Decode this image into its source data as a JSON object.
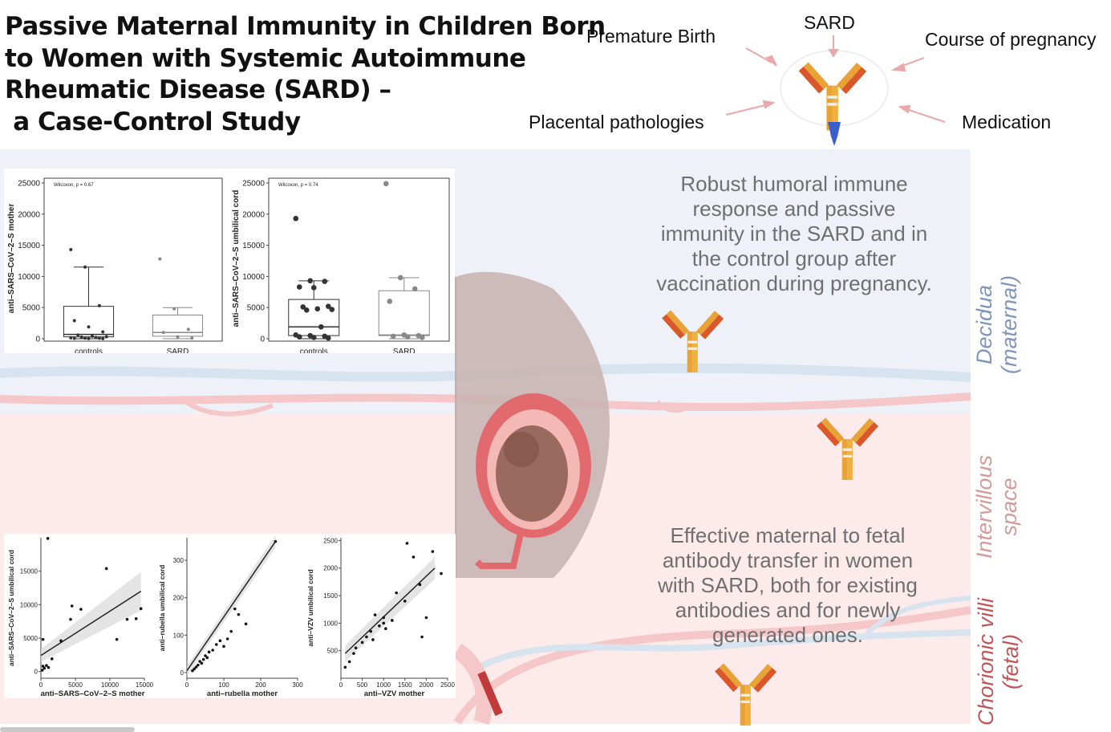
{
  "title": {
    "lines": [
      "Passive Maternal Immunity in Children Born",
      "to Women with Systemic Autoimmune",
      "Rheumatic Disease (SARD) –",
      " a Case-Control Study"
    ]
  },
  "antibody_factors": {
    "top": "SARD",
    "upper_left": "Premature Birth",
    "upper_right": "Course of pregnancy",
    "lower_left": "Placental pathologies",
    "lower_right": "Medication"
  },
  "findings": {
    "top_lines": [
      "Robust humoral immune",
      "response and passive",
      "immunity in the SARD and in",
      "the control group after",
      "vaccination during pregnancy."
    ],
    "bottom_lines": [
      "Effective maternal to fetal",
      "antibody transfer in women",
      "with SARD, both for existing",
      "antibodies and for newly",
      "generated ones."
    ]
  },
  "layers": {
    "decidua": [
      "Decidua",
      "(maternal)"
    ],
    "intervillous": [
      "Intervillous",
      "space"
    ],
    "chorionic": [
      "Chorionic villi",
      "(fetal)"
    ]
  },
  "colors": {
    "decidua_band": "#eef2f8",
    "intervillous_band": "#fdebec",
    "decidua_text": "#7f95bd",
    "intervillous_text": "#d49a9a",
    "chorionic_text": "#c0555a",
    "antibody_orange": "#e8a236",
    "antibody_red": "#d9572b",
    "antibody_blue": "#3a5fcd"
  },
  "chart_data": [
    {
      "type": "box",
      "stat_label": "Wilcoxon, p = 0.67",
      "ylabel": "anti–SARS–CoV–2–S mother",
      "categories": [
        "controls",
        "SARD"
      ],
      "ylim": [
        0,
        25000
      ],
      "yticks": [
        0,
        5000,
        10000,
        15000,
        20000,
        25000
      ],
      "boxes": [
        {
          "min": 0,
          "q1": 300,
          "median": 700,
          "q3": 5200,
          "max": 11500
        },
        {
          "min": 0,
          "q1": 400,
          "median": 1000,
          "q3": 3800,
          "max": 5000
        }
      ],
      "points": [
        [
          14300,
          11500,
          5300,
          2900,
          1900,
          1100,
          600,
          400,
          300,
          250,
          200,
          150,
          100,
          80,
          60,
          40,
          20
        ],
        [
          12800,
          4800,
          1500,
          1000,
          300,
          100
        ]
      ]
    },
    {
      "type": "box",
      "stat_label": "Wilcoxon, p = 0.74",
      "ylabel": "anti–SARS–CoV–2–S umbilical cord",
      "categories": [
        "controls",
        "SARD"
      ],
      "ylim": [
        0,
        25000
      ],
      "yticks": [
        0,
        5000,
        10000,
        15000,
        20000,
        25000
      ],
      "boxes": [
        {
          "min": 0,
          "q1": 500,
          "median": 1900,
          "q3": 6300,
          "max": 9300
        },
        {
          "min": 0,
          "q1": 500,
          "median": 600,
          "q3": 7700,
          "max": 9800
        }
      ],
      "points": [
        [
          19300,
          9300,
          9200,
          8300,
          8200,
          5200,
          5100,
          4800,
          4700,
          4600,
          1900,
          600,
          500,
          400,
          300,
          200,
          100
        ],
        [
          24900,
          9800,
          8000,
          6000,
          600,
          500,
          400,
          300,
          200
        ]
      ]
    },
    {
      "type": "scatter",
      "xlabel": "anti–SARS–CoV–2–S mother",
      "ylabel": "anti–SARS–CoV–2–S umbilical cord",
      "xlim": [
        0,
        15000
      ],
      "ylim": [
        -1000,
        20000
      ],
      "xticks": [
        0,
        5000,
        10000,
        15000
      ],
      "yticks": [
        0,
        5000,
        10000,
        15000
      ],
      "points": [
        [
          1000,
          19900
        ],
        [
          9500,
          15400
        ],
        [
          4500,
          9800
        ],
        [
          5800,
          9300
        ],
        [
          4300,
          7800
        ],
        [
          2900,
          4600
        ],
        [
          300,
          4800
        ],
        [
          11000,
          4800
        ],
        [
          12500,
          7800
        ],
        [
          13800,
          7900
        ],
        [
          14500,
          9400
        ],
        [
          1600,
          1900
        ],
        [
          300,
          800
        ],
        [
          500,
          500
        ],
        [
          800,
          900
        ],
        [
          1100,
          600
        ],
        [
          200,
          200
        ]
      ],
      "fit": [
        [
          0,
          2400
        ],
        [
          14500,
          12000
        ]
      ]
    },
    {
      "type": "scatter",
      "xlabel": "anti–rubella mother",
      "ylabel": "anti–rubella umbilical cord",
      "xlim": [
        0,
        300
      ],
      "ylim": [
        -15,
        360
      ],
      "xticks": [
        0,
        100,
        200,
        300
      ],
      "yticks": [
        0,
        100,
        200,
        300
      ],
      "points": [
        [
          240,
          350
        ],
        [
          130,
          170
        ],
        [
          140,
          155
        ],
        [
          160,
          130
        ],
        [
          120,
          110
        ],
        [
          110,
          90
        ],
        [
          90,
          85
        ],
        [
          100,
          70
        ],
        [
          80,
          75
        ],
        [
          70,
          60
        ],
        [
          60,
          55
        ],
        [
          55,
          40
        ],
        [
          50,
          45
        ],
        [
          45,
          35
        ],
        [
          40,
          25
        ],
        [
          35,
          30
        ],
        [
          30,
          20
        ],
        [
          25,
          15
        ],
        [
          20,
          10
        ],
        [
          15,
          5
        ]
      ],
      "fit": [
        [
          0,
          5
        ],
        [
          240,
          350
        ]
      ]
    },
    {
      "type": "scatter",
      "xlabel": "anti–VZV mother",
      "ylabel": "anti–VZV umbilical cord",
      "xlim": [
        0,
        2500
      ],
      "ylim": [
        0,
        2550
      ],
      "xticks": [
        0,
        500,
        1000,
        1500,
        2000,
        2500
      ],
      "yticks": [
        500,
        1000,
        1500,
        2000,
        2500
      ],
      "points": [
        [
          1550,
          2450
        ],
        [
          2150,
          2300
        ],
        [
          1700,
          2200
        ],
        [
          2350,
          1900
        ],
        [
          1850,
          1700
        ],
        [
          1300,
          1550
        ],
        [
          1500,
          1400
        ],
        [
          800,
          1150
        ],
        [
          1000,
          1100
        ],
        [
          1000,
          1000
        ],
        [
          1200,
          1050
        ],
        [
          1050,
          900
        ],
        [
          900,
          950
        ],
        [
          700,
          850
        ],
        [
          600,
          750
        ],
        [
          750,
          700
        ],
        [
          500,
          650
        ],
        [
          350,
          550
        ],
        [
          300,
          450
        ],
        [
          200,
          300
        ],
        [
          100,
          200
        ],
        [
          2000,
          1100
        ],
        [
          1900,
          750
        ]
      ],
      "fit": [
        [
          100,
          450
        ],
        [
          2200,
          2000
        ]
      ]
    }
  ]
}
